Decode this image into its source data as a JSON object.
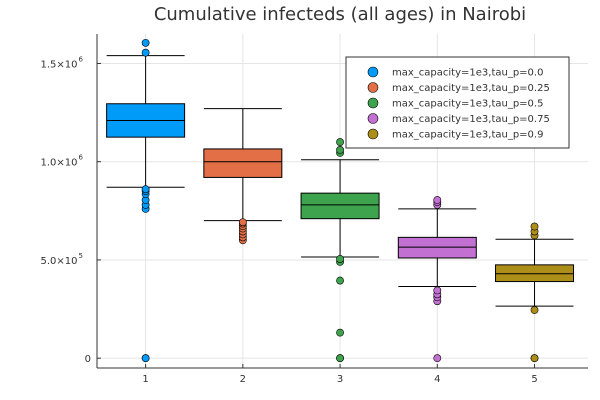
{
  "chart_data": {
    "type": "box",
    "title": "Cumulative infecteds (all ages) in Nairobi",
    "xlabel": "",
    "ylabel": "",
    "categories": [
      "1",
      "2",
      "3",
      "4",
      "5"
    ],
    "xlim": [
      0.5,
      5.55
    ],
    "ylim": [
      -50000,
      1650000
    ],
    "x_ticks": [
      {
        "value": 1,
        "label": "1"
      },
      {
        "value": 2,
        "label": "2"
      },
      {
        "value": 3,
        "label": "3"
      },
      {
        "value": 4,
        "label": "4"
      },
      {
        "value": 5,
        "label": "5"
      }
    ],
    "y_ticks": [
      {
        "value": 0,
        "base": "0",
        "exp": ""
      },
      {
        "value": 500000,
        "base": "5.0×10",
        "exp": "5"
      },
      {
        "value": 1000000,
        "base": "1.0×10",
        "exp": "6"
      },
      {
        "value": 1500000,
        "base": "1.5×10",
        "exp": "6"
      }
    ],
    "grid": true,
    "legend_position": "top-right",
    "series": [
      {
        "name": "max_capacity=1e3,tau_p=0.0",
        "color": "#009af9",
        "x": 1,
        "whisker_low": 870000,
        "q1": 1125000,
        "median": 1210000,
        "q3": 1295000,
        "whisker_high": 1540000,
        "outliers": [
          0,
          0,
          760000,
          780000,
          805000,
          835000,
          850000,
          860000,
          1555000,
          1605000
        ]
      },
      {
        "name": "max_capacity=1e3,tau_p=0.25",
        "color": "#e26f46",
        "x": 2,
        "whisker_low": 700000,
        "q1": 920000,
        "median": 1000000,
        "q3": 1065000,
        "whisker_high": 1270000,
        "outliers": [
          600000,
          615000,
          630000,
          645000,
          660000,
          672000,
          685000,
          692000
        ]
      },
      {
        "name": "max_capacity=1e3,tau_p=0.5",
        "color": "#3da44d",
        "x": 3,
        "whisker_low": 515000,
        "q1": 710000,
        "median": 780000,
        "q3": 840000,
        "whisker_high": 1010000,
        "outliers": [
          0,
          0,
          130000,
          395000,
          490000,
          505000,
          1045000,
          1060000,
          1100000
        ]
      },
      {
        "name": "max_capacity=1e3,tau_p=0.75",
        "color": "#c271d2",
        "x": 4,
        "whisker_low": 365000,
        "q1": 510000,
        "median": 565000,
        "q3": 615000,
        "whisker_high": 760000,
        "outliers": [
          0,
          290000,
          310000,
          325000,
          345000,
          780000,
          795000,
          805000
        ]
      },
      {
        "name": "max_capacity=1e3,tau_p=0.9",
        "color": "#ac8e18",
        "x": 5,
        "whisker_low": 265000,
        "q1": 390000,
        "median": 430000,
        "q3": 475000,
        "whisker_high": 605000,
        "outliers": [
          0,
          0,
          245000,
          625000,
          645000,
          670000
        ]
      }
    ]
  }
}
